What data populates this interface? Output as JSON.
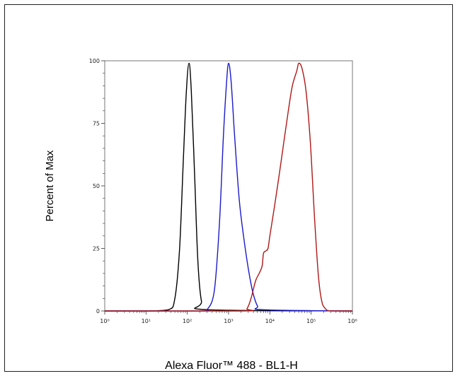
{
  "chart_data": {
    "type": "line",
    "xlabel": "Alexa Fluor™ 488 - BL1-H",
    "ylabel": "Percent of Max",
    "x_scale": "log",
    "xlim": [
      1,
      1000000
    ],
    "ylim": [
      0,
      100
    ],
    "x_ticks": [
      "10⁰",
      "10¹",
      "10²",
      "10³",
      "10⁴",
      "10⁵",
      "10⁶"
    ],
    "y_ticks": [
      "0",
      "25",
      "50",
      "75",
      "100"
    ],
    "grid": false,
    "legend": "none",
    "series": [
      {
        "color": "#000000",
        "points": [
          [
            1,
            0
          ],
          [
            10,
            0
          ],
          [
            35,
            0.5
          ],
          [
            50,
            5
          ],
          [
            65,
            25
          ],
          [
            80,
            60
          ],
          [
            95,
            88
          ],
          [
            110,
            99
          ],
          [
            125,
            88
          ],
          [
            150,
            55
          ],
          [
            180,
            20
          ],
          [
            220,
            4
          ],
          [
            300,
            0.5
          ],
          [
            1000000,
            0
          ]
        ]
      },
      {
        "color": "#1a1acc",
        "points": [
          [
            1,
            0
          ],
          [
            200,
            0
          ],
          [
            300,
            0.5
          ],
          [
            450,
            8
          ],
          [
            600,
            35
          ],
          [
            750,
            70
          ],
          [
            900,
            92
          ],
          [
            1000,
            99
          ],
          [
            1150,
            92
          ],
          [
            1400,
            70
          ],
          [
            1800,
            45
          ],
          [
            2300,
            30
          ],
          [
            3000,
            17
          ],
          [
            3800,
            8
          ],
          [
            5000,
            2
          ],
          [
            7000,
            0.5
          ],
          [
            1000000,
            0
          ]
        ]
      },
      {
        "color": "#b01818",
        "points": [
          [
            1,
            0
          ],
          [
            2000,
            0
          ],
          [
            2800,
            1
          ],
          [
            3500,
            5
          ],
          [
            4500,
            12
          ],
          [
            5500,
            15
          ],
          [
            6500,
            18
          ],
          [
            7000,
            23
          ],
          [
            8000,
            24
          ],
          [
            9000,
            25
          ],
          [
            10000,
            30
          ],
          [
            13000,
            42
          ],
          [
            17000,
            55
          ],
          [
            22000,
            68
          ],
          [
            28000,
            80
          ],
          [
            35000,
            90
          ],
          [
            45000,
            96
          ],
          [
            50000,
            99
          ],
          [
            60000,
            97
          ],
          [
            75000,
            88
          ],
          [
            95000,
            68
          ],
          [
            120000,
            38
          ],
          [
            150000,
            14
          ],
          [
            180000,
            4
          ],
          [
            220000,
            1
          ],
          [
            300000,
            0
          ],
          [
            1000000,
            0
          ]
        ]
      }
    ]
  }
}
